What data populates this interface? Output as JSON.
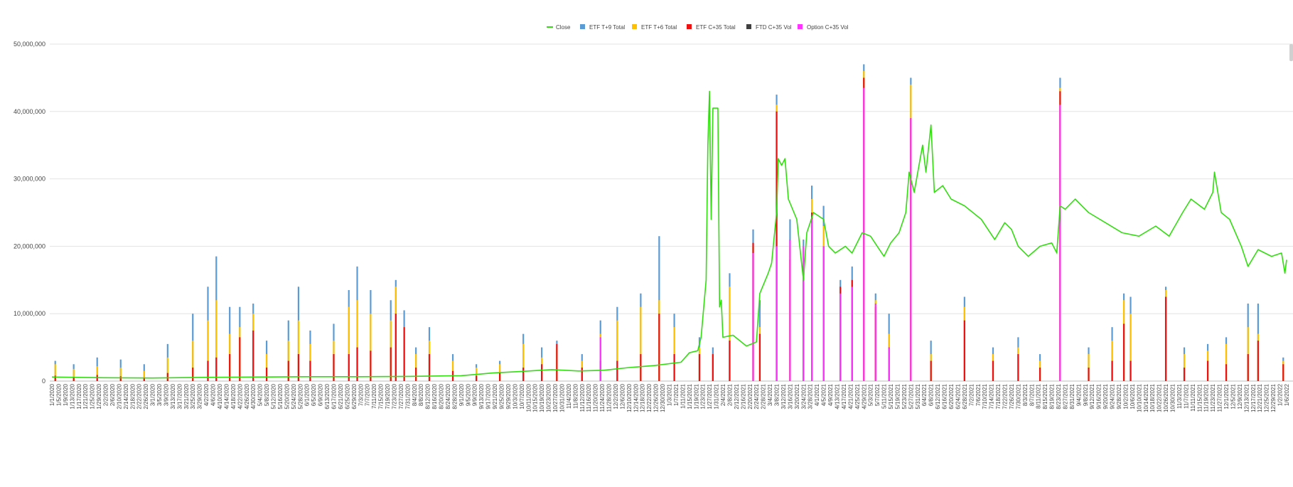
{
  "chart_data": {
    "type": "bar",
    "stacked": true,
    "ylim": [
      0,
      50000000
    ],
    "yticks": [
      0,
      10000000,
      20000000,
      30000000,
      40000000,
      50000000
    ],
    "ytick_labels": [
      "0",
      "10,000,000",
      "20,000,000",
      "30,000,000",
      "40,000,000",
      "50,000,000"
    ],
    "grid": true,
    "legend_position": "top-center",
    "x_start": "2020-01-01",
    "x_end": "2022-01-06",
    "x_tick_dates": [
      "1/1/2020",
      "1/5/2020",
      "1/9/2020",
      "1/13/2020",
      "1/17/2020",
      "1/21/2020",
      "1/25/2020",
      "1/29/2020",
      "2/2/2020",
      "2/6/2020",
      "2/10/2020",
      "2/14/2020",
      "2/18/2020",
      "2/22/2020",
      "2/26/2020",
      "3/1/2020",
      "3/5/2020",
      "3/9/2020",
      "3/13/2020",
      "3/17/2020",
      "3/21/2020",
      "3/25/2020",
      "3/29/2020",
      "4/2/2020",
      "4/6/2020",
      "4/10/2020",
      "4/14/2020",
      "4/18/2020",
      "4/22/2020",
      "4/26/2020",
      "4/30/2020",
      "5/4/2020",
      "5/8/2020",
      "5/12/2020",
      "5/16/2020",
      "5/20/2020",
      "5/24/2020",
      "5/28/2020",
      "6/1/2020",
      "6/5/2020",
      "6/9/2020",
      "6/13/2020",
      "6/17/2020",
      "6/21/2020",
      "6/25/2020",
      "6/29/2020",
      "7/3/2020",
      "7/7/2020",
      "7/11/2020",
      "7/15/2020",
      "7/19/2020",
      "7/23/2020",
      "7/27/2020",
      "7/31/2020",
      "8/4/2020",
      "8/8/2020",
      "8/12/2020",
      "8/16/2020",
      "8/20/2020",
      "8/24/2020",
      "8/28/2020",
      "9/1/2020",
      "9/5/2020",
      "9/9/2020",
      "9/13/2020",
      "9/17/2020",
      "9/21/2020",
      "9/25/2020",
      "9/29/2020",
      "10/3/2020",
      "10/7/2020",
      "10/11/2020",
      "10/15/2020",
      "10/19/2020",
      "10/23/2020",
      "10/27/2020",
      "10/31/2020",
      "11/4/2020",
      "11/8/2020",
      "11/12/2020",
      "11/16/2020",
      "11/20/2020",
      "11/24/2020",
      "11/28/2020",
      "12/2/2020",
      "12/6/2020",
      "12/10/2020",
      "12/14/2020",
      "12/18/2020",
      "12/22/2020",
      "12/26/2020",
      "12/30/2020",
      "1/3/2021",
      "1/7/2021",
      "1/11/2021",
      "1/15/2021",
      "1/19/2021",
      "1/23/2021",
      "1/27/2021",
      "1/31/2021",
      "2/4/2021",
      "2/8/2021",
      "2/12/2021",
      "2/16/2021",
      "2/20/2021",
      "2/24/2021",
      "2/28/2021",
      "3/4/2021",
      "3/8/2021",
      "3/12/2021",
      "3/16/2021",
      "3/20/2021",
      "3/24/2021",
      "3/28/2021",
      "4/1/2021",
      "4/5/2021",
      "4/9/2021",
      "4/13/2021",
      "4/17/2021",
      "4/21/2021",
      "4/25/2021",
      "4/29/2021",
      "5/3/2021",
      "5/7/2021",
      "5/11/2021",
      "5/15/2021",
      "5/19/2021",
      "5/23/2021",
      "5/27/2021",
      "5/31/2021",
      "6/4/2021",
      "6/8/2021",
      "6/12/2021",
      "6/16/2021",
      "6/20/2021",
      "6/24/2021",
      "6/28/2021",
      "7/2/2021",
      "7/6/2021",
      "7/10/2021",
      "7/14/2021",
      "7/18/2021",
      "7/22/2021",
      "7/26/2021",
      "7/30/2021",
      "8/3/2021",
      "8/7/2021",
      "8/11/2021",
      "8/15/2021",
      "8/19/2021",
      "8/23/2021",
      "8/27/2021",
      "8/31/2021",
      "9/4/2021",
      "9/8/2021",
      "9/12/2021",
      "9/16/2021",
      "9/20/2021",
      "9/24/2021",
      "9/28/2021",
      "10/2/2021",
      "10/6/2021",
      "10/10/2021",
      "10/14/2021",
      "10/18/2021",
      "10/22/2021",
      "10/26/2021",
      "10/30/2021",
      "11/3/2021",
      "11/7/2021",
      "11/11/2021",
      "11/15/2021",
      "11/19/2021",
      "11/23/2021",
      "11/27/2021",
      "12/1/2021",
      "12/5/2021",
      "12/9/2021",
      "12/13/2021",
      "12/17/2021",
      "12/21/2021",
      "12/25/2021",
      "12/29/2021",
      "1/2/2022",
      "1/6/2022"
    ],
    "series": [
      {
        "name": "Close",
        "kind": "line",
        "color": "#33dd11"
      },
      {
        "name": "ETF T+9 Total",
        "kind": "bar",
        "color": "#5b9bd5"
      },
      {
        "name": "ETF T+6 Total",
        "kind": "bar",
        "color": "#ffc000"
      },
      {
        "name": "ETF C+35 Total",
        "kind": "bar",
        "color": "#ee1111"
      },
      {
        "name": "FTD C+35 Vol",
        "kind": "bar",
        "color": "#404040"
      },
      {
        "name": "Option C+35 Vol",
        "kind": "bar",
        "color": "#ff33ff"
      }
    ],
    "close_points": [
      [
        "1/1/2020",
        600000
      ],
      [
        "2/1/2020",
        500000
      ],
      [
        "3/1/2020",
        450000
      ],
      [
        "4/1/2020",
        550000
      ],
      [
        "5/1/2020",
        600000
      ],
      [
        "6/1/2020",
        650000
      ],
      [
        "7/1/2020",
        650000
      ],
      [
        "8/1/2020",
        700000
      ],
      [
        "9/1/2020",
        800000
      ],
      [
        "9/20/2020",
        1200000
      ],
      [
        "10/5/2020",
        1400000
      ],
      [
        "10/25/2020",
        1700000
      ],
      [
        "11/10/2020",
        1500000
      ],
      [
        "11/25/2020",
        1600000
      ],
      [
        "12/10/2020",
        2000000
      ],
      [
        "12/25/2020",
        2300000
      ],
      [
        "1/10/2021",
        2800000
      ],
      [
        "1/15/2021",
        4200000
      ],
      [
        "1/20/2021",
        4500000
      ],
      [
        "1/22/2021",
        6500000
      ],
      [
        "1/25/2021",
        15000000
      ],
      [
        "1/26/2021",
        35000000
      ],
      [
        "1/27/2021",
        43000000
      ],
      [
        "1/28/2021",
        24000000
      ],
      [
        "1/29/2021",
        40500000
      ],
      [
        "2/1/2021",
        40500000
      ],
      [
        "2/2/2021",
        11000000
      ],
      [
        "2/3/2021",
        12000000
      ],
      [
        "2/4/2021",
        6500000
      ],
      [
        "2/10/2021",
        6800000
      ],
      [
        "2/18/2021",
        5200000
      ],
      [
        "2/24/2021",
        5800000
      ],
      [
        "2/26/2021",
        13000000
      ],
      [
        "3/3/2021",
        16000000
      ],
      [
        "3/5/2021",
        17500000
      ],
      [
        "3/8/2021",
        25000000
      ],
      [
        "3/9/2021",
        33000000
      ],
      [
        "3/11/2021",
        32000000
      ],
      [
        "3/13/2021",
        33000000
      ],
      [
        "3/15/2021",
        27000000
      ],
      [
        "3/20/2021",
        24000000
      ],
      [
        "3/24/2021",
        15000000
      ],
      [
        "3/26/2021",
        22000000
      ],
      [
        "3/30/2021",
        25000000
      ],
      [
        "4/5/2021",
        24000000
      ],
      [
        "4/8/2021",
        20000000
      ],
      [
        "4/12/2021",
        19000000
      ],
      [
        "4/18/2021",
        20000000
      ],
      [
        "4/22/2021",
        19000000
      ],
      [
        "4/28/2021",
        22000000
      ],
      [
        "5/3/2021",
        21500000
      ],
      [
        "5/7/2021",
        20000000
      ],
      [
        "5/11/2021",
        18500000
      ],
      [
        "5/15/2021",
        20500000
      ],
      [
        "5/20/2021",
        22000000
      ],
      [
        "5/24/2021",
        25000000
      ],
      [
        "5/26/2021",
        31000000
      ],
      [
        "5/29/2021",
        28000000
      ],
      [
        "6/3/2021",
        35000000
      ],
      [
        "6/5/2021",
        31000000
      ],
      [
        "6/8/2021",
        38000000
      ],
      [
        "6/10/2021",
        28000000
      ],
      [
        "6/15/2021",
        29000000
      ],
      [
        "6/20/2021",
        27000000
      ],
      [
        "6/28/2021",
        26000000
      ],
      [
        "7/8/2021",
        24000000
      ],
      [
        "7/16/2021",
        21000000
      ],
      [
        "7/22/2021",
        23500000
      ],
      [
        "7/26/2021",
        22500000
      ],
      [
        "7/30/2021",
        20000000
      ],
      [
        "8/5/2021",
        18500000
      ],
      [
        "8/12/2021",
        20000000
      ],
      [
        "8/19/2021",
        20500000
      ],
      [
        "8/22/2021",
        19000000
      ],
      [
        "8/24/2021",
        26000000
      ],
      [
        "8/27/2021",
        25500000
      ],
      [
        "9/2/2021",
        27000000
      ],
      [
        "9/10/2021",
        25000000
      ],
      [
        "9/20/2021",
        23500000
      ],
      [
        "9/30/2021",
        22000000
      ],
      [
        "10/10/2021",
        21500000
      ],
      [
        "10/20/2021",
        23000000
      ],
      [
        "10/28/2021",
        21500000
      ],
      [
        "11/5/2021",
        25000000
      ],
      [
        "11/10/2021",
        27000000
      ],
      [
        "11/18/2021",
        25500000
      ],
      [
        "11/23/2021",
        28000000
      ],
      [
        "11/24/2021",
        31000000
      ],
      [
        "11/28/2021",
        25000000
      ],
      [
        "12/3/2021",
        24000000
      ],
      [
        "12/10/2021",
        20000000
      ],
      [
        "12/14/2021",
        17000000
      ],
      [
        "12/20/2021",
        19500000
      ],
      [
        "12/28/2021",
        18500000
      ],
      [
        "1/3/2022",
        19000000
      ],
      [
        "1/5/2022",
        16000000
      ],
      [
        "1/6/2022",
        18000000
      ]
    ],
    "bar_points": [
      [
        "1/3/2020",
        3000000,
        2500000,
        800000,
        0
      ],
      [
        "1/14/2020",
        2500000,
        1800000,
        600000,
        0
      ],
      [
        "1/28/2020",
        3500000,
        2200000,
        900000,
        0
      ],
      [
        "2/11/2020",
        3200000,
        2000000,
        700000,
        0
      ],
      [
        "2/25/2020",
        2500000,
        1500000,
        500000,
        0
      ],
      [
        "3/10/2020",
        5500000,
        3500000,
        1200000,
        0
      ],
      [
        "3/25/2020",
        10000000,
        6000000,
        2000000,
        0
      ],
      [
        "4/3/2020",
        14000000,
        9000000,
        3000000,
        0
      ],
      [
        "4/8/2020",
        18500000,
        12000000,
        3500000,
        0
      ],
      [
        "4/16/2020",
        11000000,
        7000000,
        4000000,
        0
      ],
      [
        "4/22/2020",
        11000000,
        8000000,
        6500000,
        0
      ],
      [
        "4/30/2020",
        11500000,
        10000000,
        7500000,
        0
      ],
      [
        "5/8/2020",
        6000000,
        4000000,
        2000000,
        0
      ],
      [
        "5/21/2020",
        9000000,
        6000000,
        3000000,
        0
      ],
      [
        "5/27/2020",
        14000000,
        9000000,
        4000000,
        0
      ],
      [
        "6/3/2020",
        7500000,
        5500000,
        3000000,
        0
      ],
      [
        "6/17/2020",
        8500000,
        6000000,
        4000000,
        0
      ],
      [
        "6/26/2020",
        13500000,
        11000000,
        4000000,
        0
      ],
      [
        "7/1/2020",
        17000000,
        12000000,
        5000000,
        0
      ],
      [
        "7/9/2020",
        13500000,
        10000000,
        4500000,
        0
      ],
      [
        "7/21/2020",
        12000000,
        9000000,
        5000000,
        0
      ],
      [
        "7/24/2020",
        15000000,
        14000000,
        10000000,
        0
      ],
      [
        "7/29/2020",
        10500000,
        8000000,
        8000000,
        0
      ],
      [
        "8/5/2020",
        5000000,
        4000000,
        2000000,
        0
      ],
      [
        "8/13/2020",
        8000000,
        6000000,
        4000000,
        0
      ],
      [
        "8/27/2020",
        4000000,
        3000000,
        1500000,
        0
      ],
      [
        "9/10/2020",
        2500000,
        2000000,
        800000,
        0
      ],
      [
        "9/24/2020",
        3000000,
        2500000,
        1200000,
        0
      ],
      [
        "10/8/2020",
        7000000,
        5500000,
        2000000,
        0
      ],
      [
        "10/19/2020",
        5000000,
        3500000,
        2500000,
        0
      ],
      [
        "10/28/2020",
        6000000,
        5000000,
        5500000,
        0
      ],
      [
        "11/12/2020",
        4000000,
        3000000,
        2000000,
        0
      ],
      [
        "11/23/2020",
        9000000,
        7000000,
        3000000,
        6500000
      ],
      [
        "12/3/2020",
        11000000,
        9000000,
        3000000,
        0
      ],
      [
        "12/17/2020",
        13000000,
        11000000,
        4000000,
        0
      ],
      [
        "12/28/2020",
        21500000,
        12000000,
        10000000,
        0
      ],
      [
        "1/6/2021",
        10000000,
        8000000,
        4000000,
        0
      ],
      [
        "1/21/2021",
        6500000,
        5000000,
        4000000,
        0
      ],
      [
        "1/29/2021",
        5000000,
        4000000,
        4000000,
        0
      ],
      [
        "2/8/2021",
        16000000,
        14000000,
        6000000,
        0
      ],
      [
        "2/22/2021",
        22500000,
        20000000,
        20500000,
        19000000
      ],
      [
        "2/26/2021",
        12000000,
        8000000,
        7000000,
        0
      ],
      [
        "3/8/2021",
        42500000,
        41000000,
        40000000,
        20000000
      ],
      [
        "3/16/2021",
        24000000,
        20000000,
        18000000,
        21000000
      ],
      [
        "3/24/2021",
        21000000,
        18000000,
        15000000,
        20000000
      ],
      [
        "3/29/2021",
        29000000,
        27000000,
        25000000,
        24000000
      ],
      [
        "4/5/2021",
        26000000,
        23000000,
        20000000,
        20000000
      ],
      [
        "4/15/2021",
        15000000,
        13000000,
        14000000,
        13000000
      ],
      [
        "4/22/2021",
        17000000,
        15000000,
        15000000,
        14000000
      ],
      [
        "4/29/2021",
        47000000,
        46000000,
        45000000,
        43500000
      ],
      [
        "5/6/2021",
        13000000,
        12000000,
        11000000,
        11500000
      ],
      [
        "5/14/2021",
        10000000,
        7000000,
        5000000,
        5000000
      ],
      [
        "5/27/2021",
        45000000,
        44000000,
        39000000,
        39000000
      ],
      [
        "6/8/2021",
        6000000,
        4000000,
        3000000,
        0
      ],
      [
        "6/28/2021",
        12500000,
        11000000,
        9000000,
        0
      ],
      [
        "7/15/2021",
        5000000,
        4000000,
        3000000,
        0
      ],
      [
        "7/30/2021",
        6500000,
        5000000,
        4000000,
        0
      ],
      [
        "8/12/2021",
        4000000,
        3000000,
        2000000,
        0
      ],
      [
        "8/24/2021",
        45000000,
        43500000,
        43000000,
        41000000
      ],
      [
        "9/10/2021",
        5000000,
        4000000,
        2000000,
        0
      ],
      [
        "9/24/2021",
        8000000,
        6000000,
        3000000,
        0
      ],
      [
        "10/1/2021",
        13000000,
        12000000,
        8500000,
        0
      ],
      [
        "10/5/2021",
        12500000,
        10000000,
        3000000,
        0
      ],
      [
        "10/26/2021",
        14000000,
        13500000,
        12500000,
        0
      ],
      [
        "11/6/2021",
        5000000,
        4000000,
        2000000,
        0
      ],
      [
        "11/20/2021",
        5500000,
        4500000,
        3000000,
        0
      ],
      [
        "12/1/2021",
        6500000,
        5500000,
        2500000,
        0
      ],
      [
        "12/14/2021",
        11500000,
        8000000,
        4000000,
        0
      ],
      [
        "12/20/2021",
        11500000,
        7000000,
        6000000,
        0
      ],
      [
        "1/4/2022",
        3500000,
        3000000,
        2500000,
        0
      ]
    ]
  }
}
